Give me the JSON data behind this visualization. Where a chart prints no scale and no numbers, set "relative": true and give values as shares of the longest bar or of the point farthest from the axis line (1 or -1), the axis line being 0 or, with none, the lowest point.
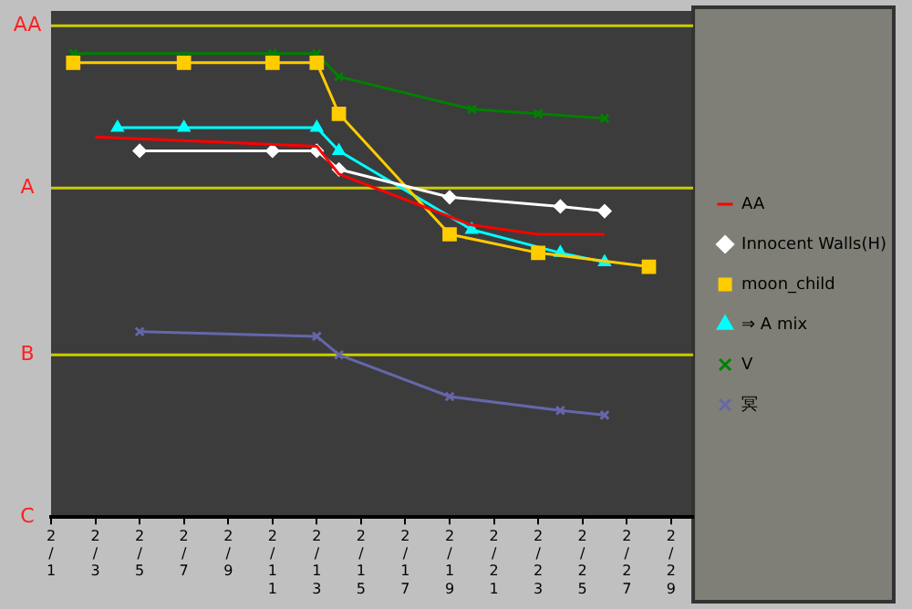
{
  "chart_data": {
    "type": "line",
    "relative": true,
    "xlim": [
      "--02-01",
      "--03-01"
    ],
    "xticks": [
      {
        "value": "--02-01",
        "label": "2/1"
      },
      {
        "value": "--02-03",
        "label": "2/3"
      },
      {
        "value": "--02-05",
        "label": "2/5"
      },
      {
        "value": "--02-07",
        "label": "2/7"
      },
      {
        "value": "--02-09",
        "label": "2/9"
      },
      {
        "value": "--02-11",
        "label": "2/11"
      },
      {
        "value": "--02-13",
        "label": "2/13"
      },
      {
        "value": "--02-15",
        "label": "2/15"
      },
      {
        "value": "--02-17",
        "label": "2/17"
      },
      {
        "value": "--02-19",
        "label": "2/19"
      },
      {
        "value": "--02-21",
        "label": "2/21"
      },
      {
        "value": "--02-23",
        "label": "2/23"
      },
      {
        "value": "--02-25",
        "label": "2/25"
      },
      {
        "value": "--02-27",
        "label": "2/27"
      },
      {
        "value": "--02-29",
        "label": "2/29"
      }
    ],
    "ref_lines": [
      {
        "axis": "y",
        "value": 1.06,
        "label": "AA",
        "color": "#cccc00"
      },
      {
        "axis": "y",
        "value": 0.71,
        "label": "A",
        "color": "#cccc00"
      },
      {
        "axis": "y",
        "value": 0.35,
        "label": "B",
        "color": "#cccc00"
      }
    ],
    "annotations": [
      "C"
    ],
    "legend": "right",
    "series": [
      {
        "name": "AA",
        "color": "#ff0000",
        "marker": "none",
        "x": [
          "--02-03",
          "--02-13",
          "--02-14",
          "--02-20",
          "--02-23",
          "--02-26"
        ],
        "values": [
          0.82,
          0.8,
          0.74,
          0.63,
          0.61,
          0.61
        ]
      },
      {
        "name": "Innocent Walls(H)",
        "color": "#ffffff",
        "marker": "diamond",
        "x": [
          "--02-05",
          "--02-11",
          "--02-13",
          "--02-14",
          "--02-19",
          "--02-24",
          "--02-26"
        ],
        "values": [
          0.79,
          0.79,
          0.79,
          0.75,
          0.69,
          0.67,
          0.66
        ]
      },
      {
        "name": "moon_child",
        "color": "#ffcc00",
        "marker": "square",
        "x": [
          "--02-02",
          "--02-07",
          "--02-11",
          "--02-13",
          "--02-14",
          "--02-19",
          "--02-23",
          "--02-28"
        ],
        "values": [
          0.98,
          0.98,
          0.98,
          0.98,
          0.87,
          0.61,
          0.57,
          0.54
        ]
      },
      {
        "name": "⇒ A mix",
        "color": "#00ffff",
        "marker": "triangle",
        "x": [
          "--02-04",
          "--02-07",
          "--02-13",
          "--02-14",
          "--02-20",
          "--02-24",
          "--02-26"
        ],
        "values": [
          0.84,
          0.84,
          0.84,
          0.79,
          0.62,
          0.57,
          0.55
        ]
      },
      {
        "name": "V",
        "color": "#008000",
        "marker": "cross",
        "x": [
          "--02-02",
          "--02-11",
          "--02-13",
          "--02-14",
          "--02-20",
          "--02-23",
          "--02-26"
        ],
        "values": [
          1,
          1,
          1,
          0.95,
          0.88,
          0.87,
          0.86
        ]
      },
      {
        "name": "冥",
        "color": "#6666aa",
        "marker": "cross",
        "x": [
          "--02-05",
          "--02-13",
          "--02-14",
          "--02-19",
          "--02-24",
          "--02-26"
        ],
        "values": [
          0.4,
          0.39,
          0.35,
          0.26,
          0.23,
          0.22
        ]
      }
    ]
  }
}
